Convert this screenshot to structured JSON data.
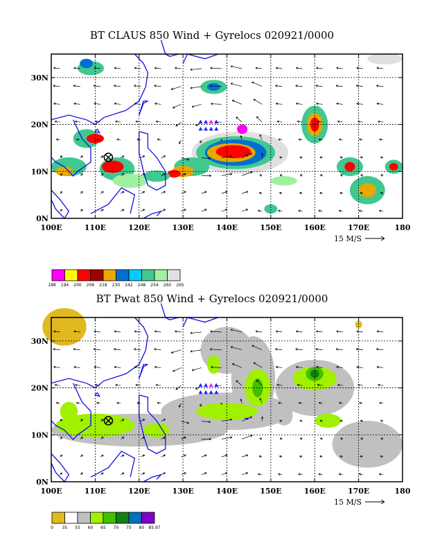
{
  "panels": [
    {
      "title": "BT CLAUS 850 Wind + Gyrelocs 020921/0000",
      "lat_labels": [
        "30N",
        "20N",
        "10N",
        "0N"
      ],
      "lon_labels": [
        "100E",
        "110E",
        "120E",
        "130E",
        "140E",
        "150E",
        "160E",
        "170E",
        "180"
      ],
      "scale_label": "15 M/S",
      "colorbar": {
        "colors": [
          "#ff00ff",
          "#ffff00",
          "#ff0000",
          "#a00000",
          "#e8a800",
          "#0070d0",
          "#00ccff",
          "#40c890",
          "#a0f0a0",
          "#e0e0e0"
        ],
        "labels": [
          "188",
          "194",
          "200",
          "206",
          "218",
          "230",
          "242",
          "248",
          "254",
          "260",
          "265"
        ]
      }
    },
    {
      "title": "BT Pwat 850 Wind + Gyrelocs 020921/0000",
      "lat_labels": [
        "30N",
        "20N",
        "10N",
        "0N"
      ],
      "lon_labels": [
        "100E",
        "110E",
        "120E",
        "130E",
        "140E",
        "150E",
        "160E",
        "170E",
        "180"
      ],
      "scale_label": "15 M/S",
      "colorbar": {
        "colors": [
          "#e0b820",
          "#ffffff",
          "#c0c0c0",
          "#a0f000",
          "#40c000",
          "#108010",
          "#0070c0",
          "#8000c8"
        ],
        "labels": [
          "0",
          "35",
          "55",
          "60",
          "65",
          "70",
          "75",
          "80",
          "85.97"
        ]
      }
    }
  ]
}
